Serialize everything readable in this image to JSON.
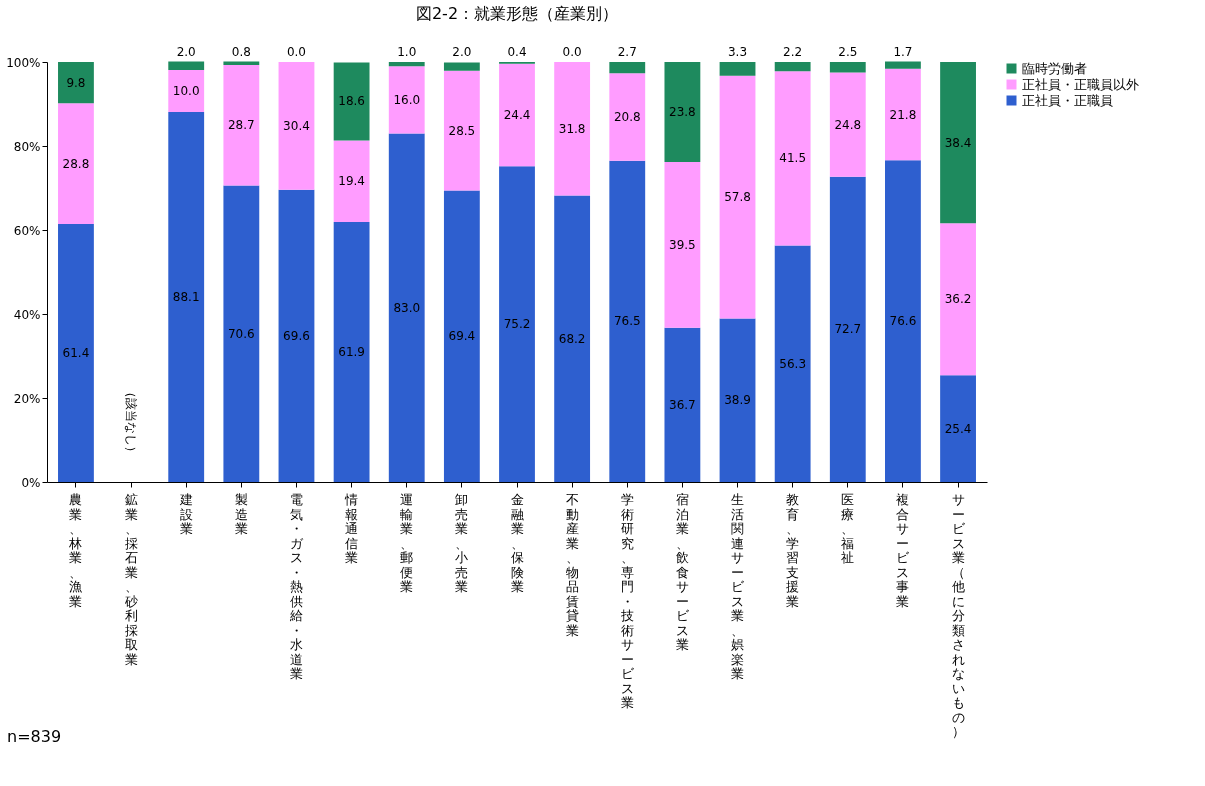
{
  "chart_data": {
    "type": "bar",
    "stacked": true,
    "title": "図2-2：就業形態（産業別）",
    "categories": [
      "農業、林業、漁業",
      "鉱業、採石業、砂利採取業",
      "建設業",
      "製造業",
      "電気・ガス・熱供給・水道業",
      "情報通信業",
      "運輸業、郵便業",
      "卸売業、小売業",
      "金融業、保険業",
      "不動産業、物品賃貸業",
      "学術研究、専門・技術サービス業",
      "宿泊業、飲食サービス業",
      "生活関連サービス業、娯楽業",
      "教育、学習支援業",
      "医療、福祉",
      "複合サービス事業",
      "サービス業（他に分類されないもの）"
    ],
    "series": [
      {
        "name": "正社員・正職員",
        "color": "#2e5fcf",
        "values": [
          61.4,
          null,
          88.1,
          70.6,
          69.6,
          61.9,
          83.0,
          69.4,
          75.2,
          68.2,
          76.5,
          36.7,
          38.9,
          56.3,
          72.7,
          76.6,
          25.4
        ],
        "value_labels": [
          "61.4",
          null,
          "88.1",
          "70.6",
          "69.6",
          "61.9",
          "83.0",
          "69.4",
          "75.2",
          "68.2",
          "76.5",
          "36.7",
          "38.9",
          "56.3",
          "72.7",
          "76.6",
          "25.4"
        ]
      },
      {
        "name": "正社員・正職員以外",
        "color": "#ff9cff",
        "values": [
          28.8,
          null,
          10.0,
          28.7,
          30.4,
          19.4,
          16.0,
          28.5,
          24.4,
          31.8,
          20.8,
          39.5,
          57.8,
          41.5,
          24.8,
          21.8,
          36.2
        ],
        "value_labels": [
          "28.8",
          null,
          "10.0",
          "28.7",
          "30.4",
          "19.4",
          "16.0",
          "28.5",
          "24.4",
          "31.8",
          "20.8",
          "39.5",
          "57.8",
          "41.5",
          "24.8",
          "21.8",
          "36.2"
        ]
      },
      {
        "name": "臨時労働者",
        "color": "#1e8a5e",
        "values": [
          9.8,
          null,
          2.0,
          0.8,
          0.0,
          18.6,
          1.0,
          2.0,
          0.4,
          0.0,
          2.7,
          23.8,
          3.3,
          2.2,
          2.5,
          1.7,
          38.4
        ],
        "value_labels": [
          "9.8",
          null,
          "2.0",
          "0.8",
          "0.0",
          "18.6",
          "1.0",
          "2.0",
          "0.4",
          "0.0",
          "2.7",
          "23.8",
          "3.3",
          "2.2",
          "2.5",
          "1.7",
          "38.4"
        ]
      }
    ],
    "ylim": [
      0,
      100
    ],
    "yticks": [
      {
        "value": 0,
        "label": "0%"
      },
      {
        "value": 20,
        "label": "20%"
      },
      {
        "value": 40,
        "label": "40%"
      },
      {
        "value": 60,
        "label": "60%"
      },
      {
        "value": 80,
        "label": "80%"
      },
      {
        "value": 100,
        "label": "100%"
      }
    ],
    "grid": false,
    "legend": "right",
    "annotations": [
      "（該当なし）",
      "n=839"
    ]
  }
}
